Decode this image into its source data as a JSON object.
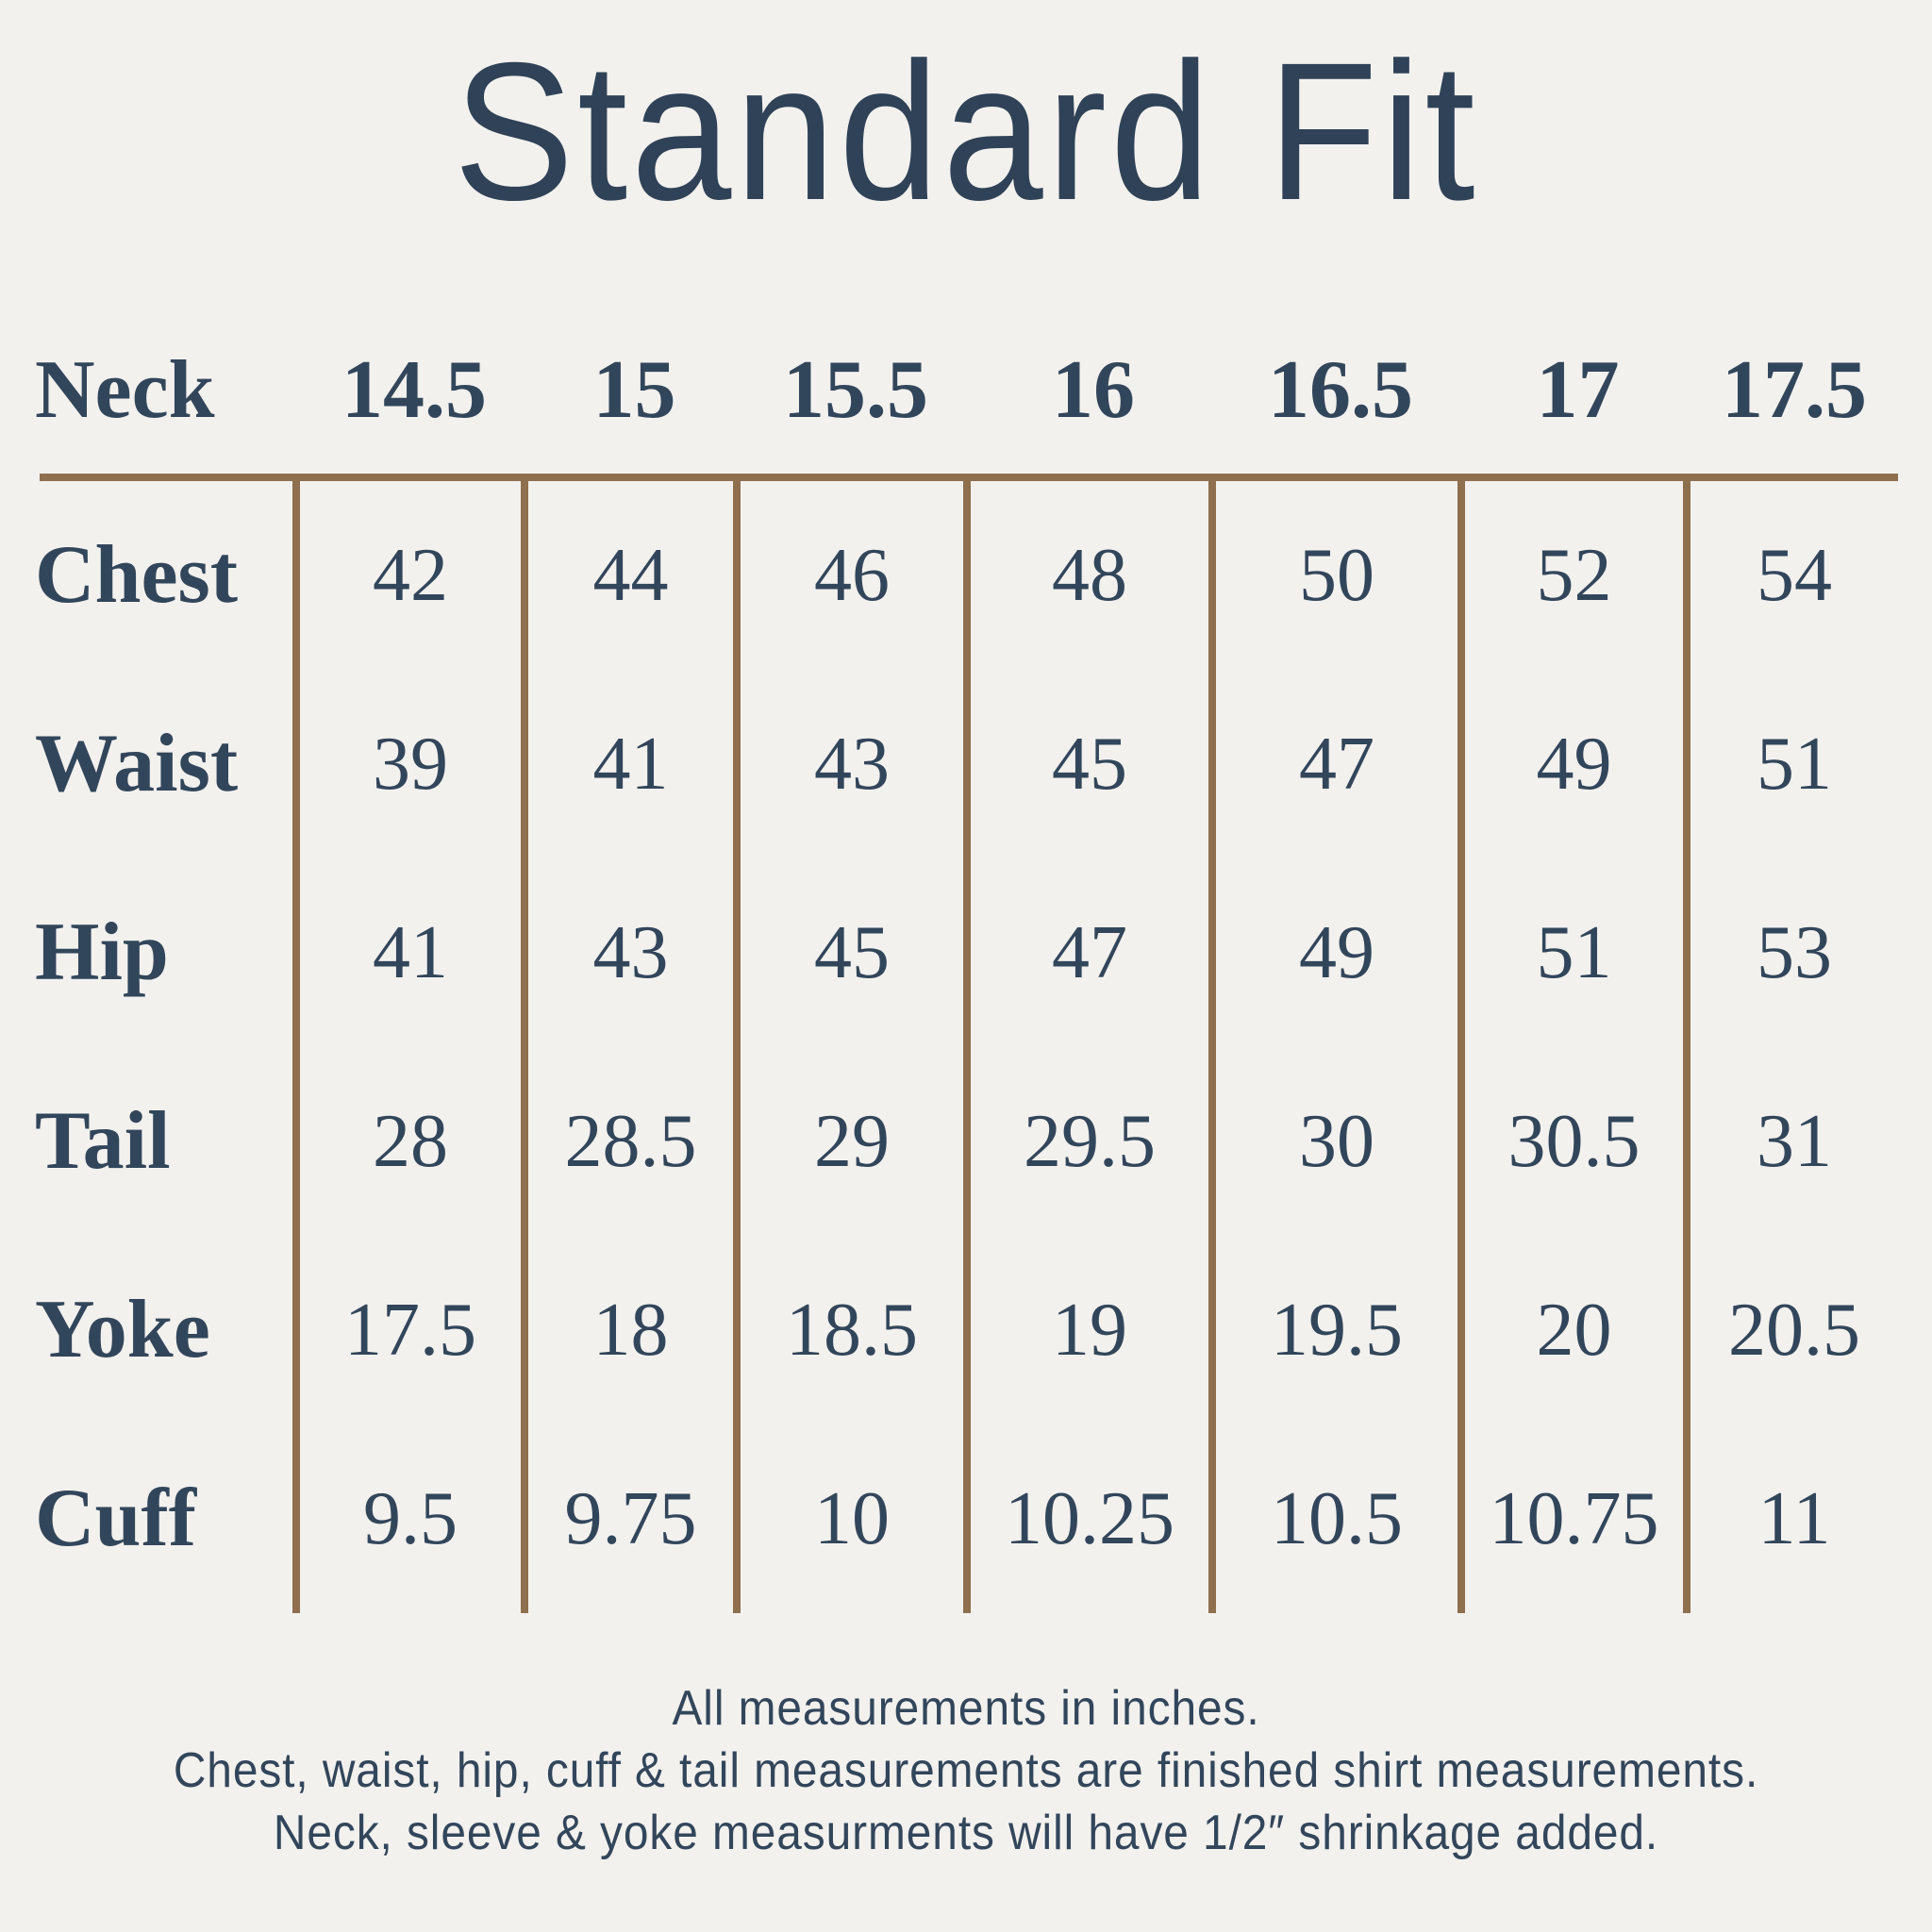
{
  "title": "Standard Fit",
  "colors": {
    "background": "#f3f1ee",
    "text_navy": "#32465b",
    "title_navy": "#2f4257",
    "grid_line_brown": "#8e6f4e"
  },
  "chart_data": {
    "type": "table",
    "title": "Standard Fit",
    "row_header": "Neck",
    "columns": [
      "14.5",
      "15",
      "15.5",
      "16",
      "16.5",
      "17",
      "17.5"
    ],
    "rows": [
      {
        "label": "Chest",
        "values": [
          "42",
          "44",
          "46",
          "48",
          "50",
          "52",
          "54"
        ]
      },
      {
        "label": "Waist",
        "values": [
          "39",
          "41",
          "43",
          "45",
          "47",
          "49",
          "51"
        ]
      },
      {
        "label": "Hip",
        "values": [
          "41",
          "43",
          "45",
          "47",
          "49",
          "51",
          "53"
        ]
      },
      {
        "label": "Tail",
        "values": [
          "28",
          "28.5",
          "29",
          "29.5",
          "30",
          "30.5",
          "31"
        ]
      },
      {
        "label": "Yoke",
        "values": [
          "17.5",
          "18",
          "18.5",
          "19",
          "19.5",
          "20",
          "20.5"
        ]
      },
      {
        "label": "Cuff",
        "values": [
          "9.5",
          "9.75",
          "10",
          "10.25",
          "10.5",
          "10.75",
          "11"
        ]
      }
    ],
    "notes": [
      "All measurements in inches.",
      "Chest, waist, hip, cuff & tail measurements are finished shirt measurements.",
      "Neck, sleeve & yoke measurments will have 1/2″ shrinkage added."
    ]
  }
}
